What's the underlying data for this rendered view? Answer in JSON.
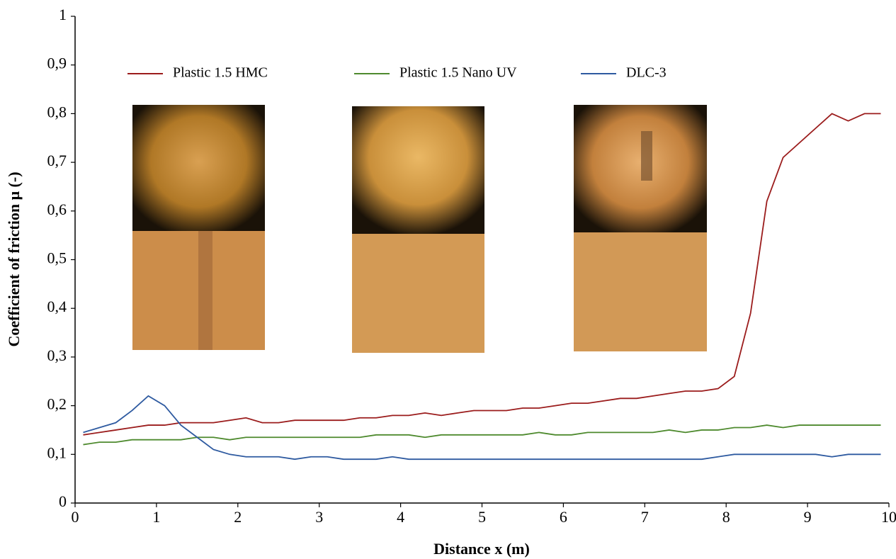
{
  "chart_data": {
    "type": "line",
    "xlabel": "Distance x (m)",
    "ylabel": "Coefficient of friction μ (-)",
    "x": [
      0.1,
      0.3,
      0.5,
      0.7,
      0.9,
      1.1,
      1.3,
      1.5,
      1.7,
      1.9,
      2.1,
      2.3,
      2.5,
      2.7,
      2.9,
      3.1,
      3.3,
      3.5,
      3.7,
      3.9,
      4.1,
      4.3,
      4.5,
      4.7,
      4.9,
      5.1,
      5.3,
      5.5,
      5.7,
      5.9,
      6.1,
      6.3,
      6.5,
      6.7,
      6.9,
      7.1,
      7.3,
      7.5,
      7.7,
      7.9,
      8.1,
      8.3,
      8.5,
      8.7,
      8.9,
      9.1,
      9.3,
      9.5,
      9.7,
      9.9
    ],
    "series": [
      {
        "name": "Plastic 1.5 HMC",
        "color": "#9b1c1c",
        "values": [
          0.14,
          0.145,
          0.15,
          0.155,
          0.16,
          0.16,
          0.165,
          0.165,
          0.165,
          0.17,
          0.175,
          0.165,
          0.165,
          0.17,
          0.17,
          0.17,
          0.17,
          0.175,
          0.175,
          0.18,
          0.18,
          0.185,
          0.18,
          0.185,
          0.19,
          0.19,
          0.19,
          0.195,
          0.195,
          0.2,
          0.205,
          0.205,
          0.21,
          0.215,
          0.215,
          0.22,
          0.225,
          0.23,
          0.23,
          0.235,
          0.26,
          0.39,
          0.62,
          0.71,
          0.74,
          0.77,
          0.8,
          0.785,
          0.8,
          0.8
        ]
      },
      {
        "name": "Plastic 1.5 Nano UV",
        "color": "#4e8a2e",
        "values": [
          0.12,
          0.125,
          0.125,
          0.13,
          0.13,
          0.13,
          0.13,
          0.135,
          0.135,
          0.13,
          0.135,
          0.135,
          0.135,
          0.135,
          0.135,
          0.135,
          0.135,
          0.135,
          0.14,
          0.14,
          0.14,
          0.135,
          0.14,
          0.14,
          0.14,
          0.14,
          0.14,
          0.14,
          0.145,
          0.14,
          0.14,
          0.145,
          0.145,
          0.145,
          0.145,
          0.145,
          0.15,
          0.145,
          0.15,
          0.15,
          0.155,
          0.155,
          0.16,
          0.155,
          0.16,
          0.16,
          0.16,
          0.16,
          0.16,
          0.16
        ]
      },
      {
        "name": "DLC-3",
        "color": "#2e5aa0",
        "values": [
          0.145,
          0.155,
          0.165,
          0.19,
          0.22,
          0.2,
          0.16,
          0.135,
          0.11,
          0.1,
          0.095,
          0.095,
          0.095,
          0.09,
          0.095,
          0.095,
          0.09,
          0.09,
          0.09,
          0.095,
          0.09,
          0.09,
          0.09,
          0.09,
          0.09,
          0.09,
          0.09,
          0.09,
          0.09,
          0.09,
          0.09,
          0.09,
          0.09,
          0.09,
          0.09,
          0.09,
          0.09,
          0.09,
          0.09,
          0.095,
          0.1,
          0.1,
          0.1,
          0.1,
          0.1,
          0.1,
          0.095,
          0.1,
          0.1,
          0.1
        ]
      }
    ],
    "xlim": [
      0,
      10
    ],
    "xticks": [
      0,
      1,
      2,
      3,
      4,
      5,
      6,
      7,
      8,
      9,
      10
    ],
    "ylim": [
      0,
      1
    ],
    "yticks": [
      0,
      {
        "value": 0.1,
        "label": "0,1"
      },
      {
        "value": 0.2,
        "label": "0,2"
      },
      {
        "value": 0.3,
        "label": "0,3"
      },
      {
        "value": 0.4,
        "label": "0,4"
      },
      {
        "value": 0.5,
        "label": "0,5"
      },
      {
        "value": 0.6,
        "label": "0,6"
      },
      {
        "value": 0.7,
        "label": "0,7"
      },
      {
        "value": 0.8,
        "label": "0,8"
      },
      {
        "value": 0.9,
        "label": "0,9"
      },
      1
    ],
    "grid": false,
    "legend": "top"
  }
}
